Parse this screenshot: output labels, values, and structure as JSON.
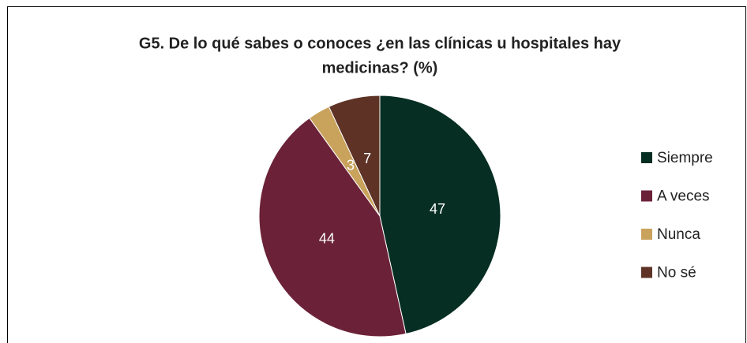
{
  "chart_data": {
    "type": "pie",
    "title": [
      "G5. De lo qué sabes o conoces  ¿en las clínicas u hospitales hay",
      "medicinas? (%)"
    ],
    "categories": [
      "Siempre",
      "A veces",
      "Nunca",
      "No sé"
    ],
    "values": [
      47,
      44,
      3,
      7
    ],
    "colors": [
      "#062e22",
      "#6b2238",
      "#c9a25c",
      "#5e3326"
    ],
    "legend": "right"
  }
}
